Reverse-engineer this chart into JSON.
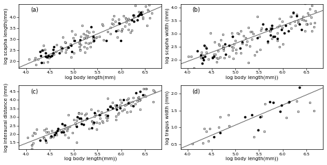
{
  "panels": [
    {
      "label": "(a)",
      "ylabel": "log scapha length(mm)",
      "xlabel": "log body length(mm)",
      "xlim": [
        3.85,
        6.85
      ],
      "ylim": [
        1.7,
        4.6
      ],
      "yticks": [
        2.0,
        2.5,
        3.0,
        3.5,
        4.0
      ],
      "xticks": [
        4.0,
        4.5,
        5.0,
        5.5,
        6.0,
        6.5
      ],
      "line": [
        3.85,
        1.72,
        6.85,
        4.48
      ],
      "n_open": 110,
      "n_filled": 35,
      "scatter_std": 0.3
    },
    {
      "label": "(b)",
      "ylabel": "log scapha width (mm)",
      "xlabel": "log body length(mm))",
      "xlim": [
        3.85,
        6.85
      ],
      "ylim": [
        1.7,
        4.15
      ],
      "yticks": [
        2.0,
        2.5,
        3.0,
        3.5,
        4.0
      ],
      "xticks": [
        4.0,
        4.5,
        5.0,
        5.5,
        6.0,
        6.5
      ],
      "line": [
        3.85,
        1.85,
        6.85,
        3.9
      ],
      "n_open": 110,
      "n_filled": 35,
      "scatter_std": 0.32
    },
    {
      "label": "(c)",
      "ylabel": "log interaural distance (mm)",
      "xlabel": "log body length(mm))",
      "xlim": [
        3.85,
        6.85
      ],
      "ylim": [
        1.1,
        4.85
      ],
      "yticks": [
        1.5,
        2.0,
        2.5,
        3.0,
        3.5,
        4.0,
        4.5
      ],
      "xticks": [
        4.0,
        4.5,
        5.0,
        5.5,
        6.0,
        6.5
      ],
      "line": [
        3.85,
        1.3,
        6.85,
        4.55
      ],
      "n_open": 110,
      "n_filled": 35,
      "scatter_std": 0.36
    },
    {
      "label": "(d)",
      "ylabel": "log tragus width (mm)",
      "xlabel": "log body length(mm))",
      "xlim": [
        3.85,
        6.85
      ],
      "ylim": [
        0.35,
        2.25
      ],
      "yticks": [
        0.5,
        1.0,
        1.5,
        2.0
      ],
      "xticks": [
        4.0,
        4.5,
        5.0,
        5.5,
        6.0,
        6.5
      ],
      "line": [
        3.85,
        0.38,
        6.85,
        2.18
      ],
      "n_open": 22,
      "n_filled": 12,
      "scatter_std": 0.28
    }
  ],
  "line_color": "#666666",
  "background_color": "white",
  "seed": 7
}
